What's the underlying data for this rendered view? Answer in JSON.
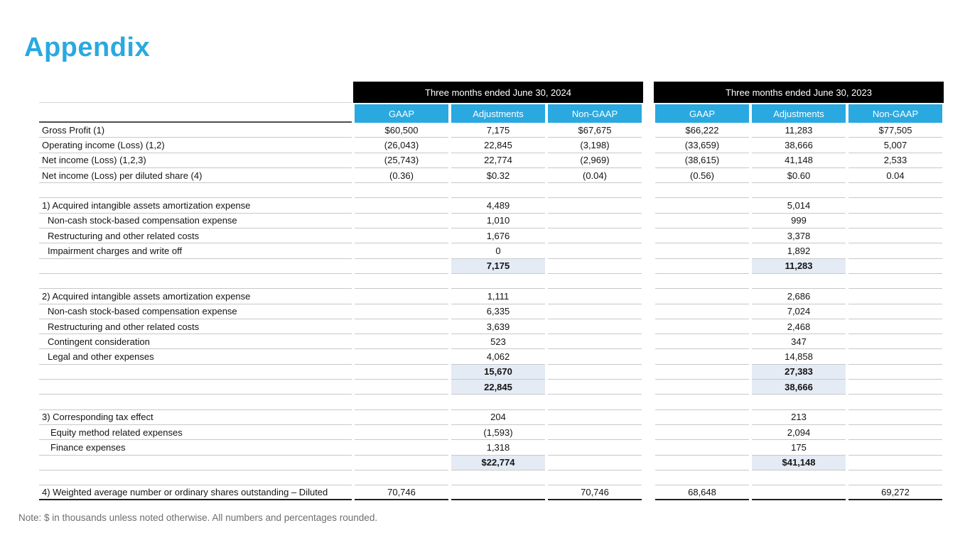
{
  "page": {
    "title": "Appendix",
    "note": "Note: $ in thousands unless noted otherwise. All numbers and percentages rounded."
  },
  "colors": {
    "accent": "#29A9E0",
    "title_accent": "#29ABE2",
    "group_header_bg": "#000000",
    "highlight": "#E4EBF5"
  },
  "table": {
    "groups": [
      {
        "label": "Three months ended June 30, 2024"
      },
      {
        "label": "Three months ended June 30, 2023"
      }
    ],
    "columns": [
      "GAAP",
      "Adjustments",
      "Non-GAAP"
    ],
    "rows": [
      {
        "type": "data",
        "label": "Gross Profit (1)",
        "indent": 0,
        "g1": [
          "$60,500",
          "7,175",
          "$67,675"
        ],
        "g2": [
          "$66,222",
          "11,283",
          "$77,505"
        ]
      },
      {
        "type": "data",
        "label": "Operating income (Loss) (1,2)",
        "indent": 0,
        "g1": [
          "(26,043)",
          "22,845",
          "(3,198)"
        ],
        "g2": [
          "(33,659)",
          "38,666",
          "5,007"
        ]
      },
      {
        "type": "data",
        "label": "Net income (Loss) (1,2,3)",
        "indent": 0,
        "g1": [
          "(25,743)",
          "22,774",
          "(2,969)"
        ],
        "g2": [
          "(38,615)",
          "41,148",
          "2,533"
        ]
      },
      {
        "type": "data",
        "label": "Net income (Loss) per diluted share (4)",
        "indent": 0,
        "g1": [
          "(0.36)",
          "$0.32",
          "(0.04)"
        ],
        "g2": [
          "(0.56)",
          "$0.60",
          "0.04"
        ]
      },
      {
        "type": "spacer"
      },
      {
        "type": "data",
        "label": "1) Acquired intangible assets amortization expense",
        "indent": 0,
        "g1": [
          "",
          "4,489",
          ""
        ],
        "g2": [
          "",
          "5,014",
          ""
        ]
      },
      {
        "type": "data",
        "label": "Non-cash stock-based compensation expense",
        "indent": 1,
        "g1": [
          "",
          "1,010",
          ""
        ],
        "g2": [
          "",
          "999",
          ""
        ]
      },
      {
        "type": "data",
        "label": "Restructuring and other related costs",
        "indent": 1,
        "g1": [
          "",
          "1,676",
          ""
        ],
        "g2": [
          "",
          "3,378",
          ""
        ]
      },
      {
        "type": "data",
        "label": "Impairment charges and write off",
        "indent": 1,
        "g1": [
          "",
          "0",
          ""
        ],
        "g2": [
          "",
          "1,892",
          ""
        ]
      },
      {
        "type": "total",
        "label": "",
        "g1": [
          "",
          "7,175",
          ""
        ],
        "g2": [
          "",
          "11,283",
          ""
        ]
      },
      {
        "type": "spacer"
      },
      {
        "type": "data",
        "label": "2) Acquired intangible assets amortization expense",
        "indent": 0,
        "g1": [
          "",
          "1,111",
          ""
        ],
        "g2": [
          "",
          "2,686",
          ""
        ]
      },
      {
        "type": "data",
        "label": "Non-cash stock-based compensation expense",
        "indent": 1,
        "g1": [
          "",
          "6,335",
          ""
        ],
        "g2": [
          "",
          "7,024",
          ""
        ]
      },
      {
        "type": "data",
        "label": "Restructuring and other related costs",
        "indent": 1,
        "g1": [
          "",
          "3,639",
          ""
        ],
        "g2": [
          "",
          "2,468",
          ""
        ]
      },
      {
        "type": "data",
        "label": "Contingent consideration",
        "indent": 1,
        "g1": [
          "",
          "523",
          ""
        ],
        "g2": [
          "",
          "347",
          ""
        ]
      },
      {
        "type": "data",
        "label": "Legal and other expenses",
        "indent": 1,
        "g1": [
          "",
          "4,062",
          ""
        ],
        "g2": [
          "",
          "14,858",
          ""
        ]
      },
      {
        "type": "total",
        "label": "",
        "g1": [
          "",
          "15,670",
          ""
        ],
        "g2": [
          "",
          "27,383",
          ""
        ]
      },
      {
        "type": "total",
        "label": "",
        "g1": [
          "",
          "22,845",
          ""
        ],
        "g2": [
          "",
          "38,666",
          ""
        ]
      },
      {
        "type": "spacer"
      },
      {
        "type": "data",
        "label": "3) Corresponding tax effect",
        "indent": 0,
        "g1": [
          "",
          "204",
          ""
        ],
        "g2": [
          "",
          "213",
          ""
        ]
      },
      {
        "type": "data",
        "label": "Equity method related expenses",
        "indent": 2,
        "g1": [
          "",
          "(1,593)",
          ""
        ],
        "g2": [
          "",
          "2,094",
          ""
        ]
      },
      {
        "type": "data",
        "label": "Finance expenses",
        "indent": 2,
        "g1": [
          "",
          "1,318",
          ""
        ],
        "g2": [
          "",
          "175",
          ""
        ]
      },
      {
        "type": "total",
        "label": "",
        "g1": [
          "",
          "$22,774",
          ""
        ],
        "g2": [
          "",
          "$41,148",
          ""
        ]
      },
      {
        "type": "spacer"
      },
      {
        "type": "data",
        "label": "4) Weighted average number or ordinary shares outstanding – Diluted",
        "indent": 0,
        "bottom": true,
        "g1": [
          "70,746",
          "",
          "70,746"
        ],
        "g2": [
          "68,648",
          "",
          "69,272"
        ]
      }
    ]
  }
}
